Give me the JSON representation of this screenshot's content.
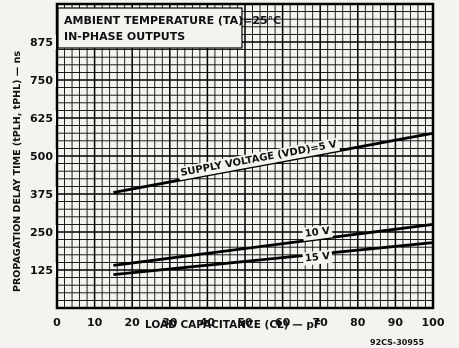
{
  "chart_data": {
    "type": "line",
    "title_lines": [
      "AMBIENT TEMPERATURE (TA)=25°C",
      "IN-PHASE OUTPUTS"
    ],
    "xlabel": "LOAD CAPACITANCE (CL) — pF",
    "ylabel": "PROPAGATION DELAY TIME (tPLH, tPHL) — ns",
    "figure_code": "92CS-30955",
    "xlim": [
      0,
      100
    ],
    "ylim": [
      0,
      1000
    ],
    "x_ticks": [
      0,
      10,
      20,
      30,
      40,
      50,
      60,
      70,
      80,
      90,
      100
    ],
    "x_tick_labels": [
      "0",
      "10",
      "20",
      "30",
      "40",
      "50",
      "60",
      "70",
      "80",
      "90",
      "100"
    ],
    "y_ticks": [
      125,
      250,
      375,
      500,
      625,
      750,
      875
    ],
    "y_tick_labels": [
      "125",
      "250",
      "375",
      "500",
      "625",
      "750",
      "875"
    ],
    "grid": true,
    "series": [
      {
        "name": "SUPPLY VOLTAGE (VDD)=5 V",
        "x": [
          15,
          100
        ],
        "y": [
          380,
          575
        ]
      },
      {
        "name": "10 V",
        "x": [
          15,
          100
        ],
        "y": [
          140,
          275
        ]
      },
      {
        "name": "15 V",
        "x": [
          15,
          100
        ],
        "y": [
          110,
          215
        ]
      }
    ]
  }
}
